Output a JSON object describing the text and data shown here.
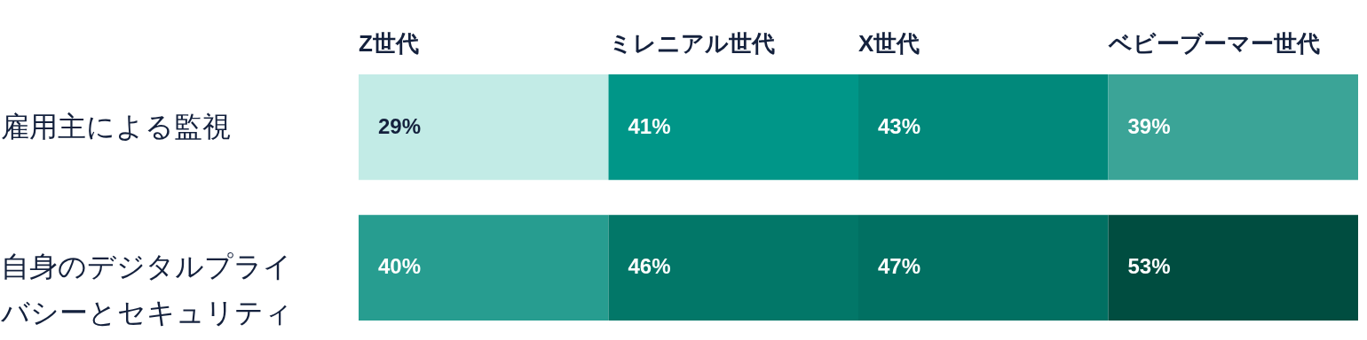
{
  "chart_data": {
    "type": "heatmap",
    "categories": [
      "Z世代",
      "ミレニアル世代",
      "X世代",
      "ベビーブーマー世代"
    ],
    "y_categories": [
      "雇用主による監視",
      "自身のデジタルプライバシーとセキュリティ"
    ],
    "cells": [
      [
        29,
        41,
        43,
        39
      ],
      [
        40,
        46,
        47,
        53
      ]
    ],
    "cell_labels": [
      [
        "29%",
        "41%",
        "43%",
        "39%"
      ],
      [
        "40%",
        "46%",
        "47%",
        "53%"
      ]
    ]
  }
}
